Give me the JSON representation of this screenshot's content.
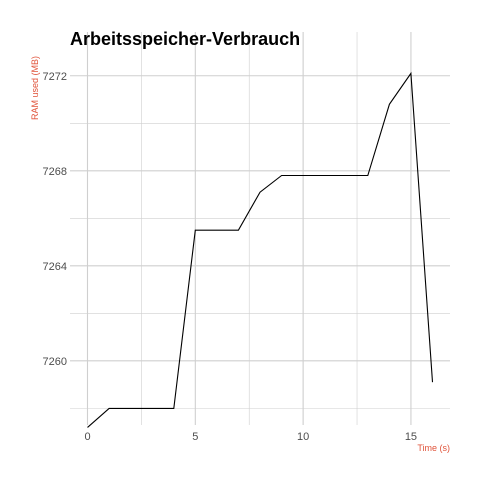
{
  "chart_data": {
    "type": "line",
    "title": "Arbeitsspeicher-Verbrauch",
    "xlabel": "Time (s)",
    "ylabel": "RAM used (MB)",
    "xlim": [
      0,
      16
    ],
    "ylim": [
      7257.3,
      7273.0
    ],
    "x_ticks": [
      0,
      5,
      10,
      15
    ],
    "x_minor_ticks": [
      2.5,
      7.5,
      12.5
    ],
    "y_ticks": [
      7260,
      7264,
      7268,
      7272
    ],
    "y_minor_ticks": [
      7258,
      7262,
      7266,
      7270
    ],
    "grid": true,
    "series": [
      {
        "x": [
          0,
          1,
          2,
          3,
          4,
          5,
          6,
          7,
          8,
          9,
          10,
          11,
          12,
          13,
          14,
          15,
          16
        ],
        "y": [
          7257.2,
          7258.0,
          7258.0,
          7258.0,
          7258.0,
          7265.5,
          7265.5,
          7265.5,
          7267.1,
          7267.8,
          7267.8,
          7267.8,
          7267.8,
          7267.8,
          7270.8,
          7272.1,
          7259.1
        ],
        "color": "#000000"
      }
    ],
    "label_color": "#e0533a",
    "grid_color": "#cfcfcf"
  }
}
